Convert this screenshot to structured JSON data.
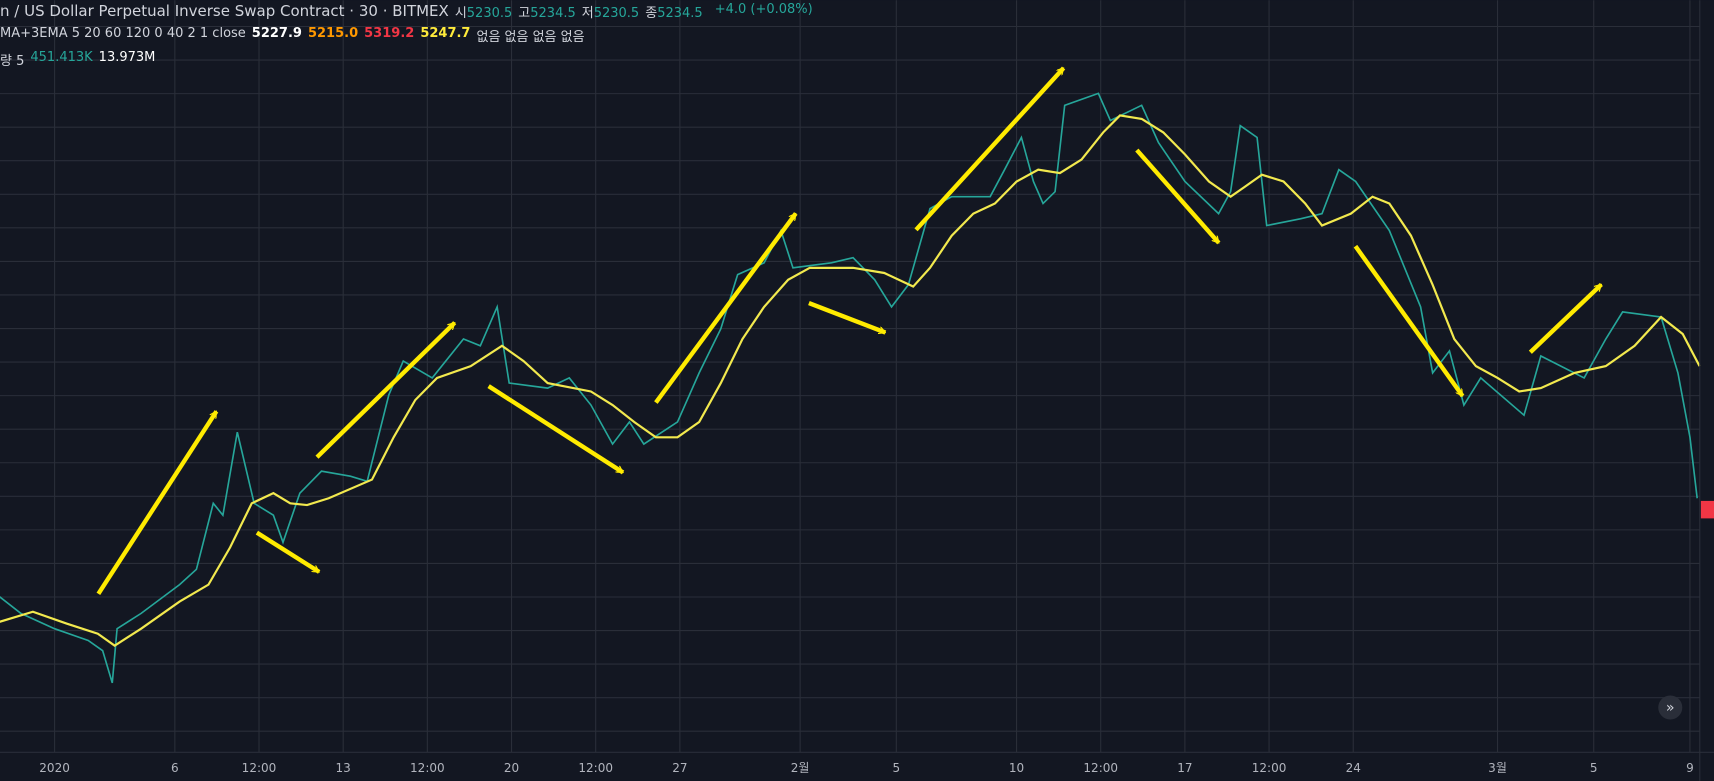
{
  "header": {
    "title": "n / US Dollar Perpetual Inverse Swap Contract · 30 · BITMEX",
    "quote": [
      {
        "label": "시",
        "value": "5230.5"
      },
      {
        "label": "고",
        "value": "5234.5"
      },
      {
        "label": "저",
        "value": "5230.5"
      },
      {
        "label": "종",
        "value": "5234.5"
      }
    ],
    "change": "+4.0 (+0.08%)"
  },
  "indicators": {
    "ma": {
      "name": "MA+3EMA 5 20 60 120 0 40 2 1 close",
      "values": [
        "5227.9",
        "5215.0",
        "5319.2",
        "5247.7"
      ],
      "colors": [
        "#ffffff",
        "#ff9800",
        "#f23645",
        "#ffeb3b"
      ],
      "tail": "없음 없음 없음 없음"
    },
    "volume": {
      "name": "량 5",
      "values": [
        "451.413K",
        "13.973M"
      ],
      "colors": [
        "#26a69a",
        "#ffffff"
      ]
    }
  },
  "chart_data": {
    "type": "line",
    "grid": true,
    "xlim": [
      -2.27,
      68.41
    ],
    "ylim": [
      6350,
      10790
    ],
    "xticks": [
      {
        "value": 0,
        "label": "2020"
      },
      {
        "value": 5,
        "label": "6"
      },
      {
        "value": 8.5,
        "label": "12:00"
      },
      {
        "value": 12,
        "label": "13"
      },
      {
        "value": 15.5,
        "label": "12:00"
      },
      {
        "value": 19,
        "label": "20"
      },
      {
        "value": 22.5,
        "label": "12:00"
      },
      {
        "value": 26,
        "label": "27"
      },
      {
        "value": 31,
        "label": "2월"
      },
      {
        "value": 35,
        "label": "5"
      },
      {
        "value": 40,
        "label": "10"
      },
      {
        "value": 43.5,
        "label": "12:00"
      },
      {
        "value": 47,
        "label": "17"
      },
      {
        "value": 50.5,
        "label": "12:00"
      },
      {
        "value": 54,
        "label": "24"
      },
      {
        "value": 60,
        "label": "3월"
      },
      {
        "value": 64,
        "label": "5"
      },
      {
        "value": 68,
        "label": "9"
      }
    ],
    "series": [
      {
        "color": "#26a69a",
        "x": [
          -2.3,
          -1.4,
          0,
          1.4,
          2.0,
          2.4,
          2.6,
          3.6,
          5.2,
          5.9,
          6.6,
          7.0,
          7.6,
          8.3,
          9.1,
          9.5,
          10.2,
          11.1,
          12.3,
          13.0,
          13.9,
          14.5,
          15.7,
          17.0,
          17.7,
          18.4,
          18.9,
          20.5,
          21.4,
          22.3,
          23.2,
          23.9,
          24.5,
          25.9,
          26.8,
          27.7,
          28.4,
          29.5,
          30.2,
          30.7,
          32.3,
          33.2,
          34.1,
          34.8,
          35.5,
          36.4,
          37.3,
          38.9,
          39.5,
          40.2,
          40.7,
          41.1,
          41.6,
          42.0,
          43.4,
          43.9,
          45.2,
          45.9,
          47.0,
          48.4,
          48.9,
          49.3,
          50.0,
          50.4,
          51.8,
          52.7,
          53.4,
          54.1,
          55.5,
          56.8,
          57.3,
          58.0,
          58.6,
          59.3,
          61.1,
          61.8,
          63.6,
          64.5,
          65.2,
          66.8,
          67.5,
          68.0,
          68.3
        ],
        "values": [
          7270,
          7170,
          7080,
          7010,
          6950,
          6760,
          7080,
          7170,
          7340,
          7430,
          7820,
          7750,
          8240,
          7820,
          7750,
          7590,
          7880,
          8010,
          7980,
          7950,
          8460,
          8660,
          8560,
          8790,
          8750,
          8980,
          8530,
          8500,
          8560,
          8400,
          8170,
          8300,
          8170,
          8300,
          8590,
          8850,
          9170,
          9240,
          9430,
          9210,
          9240,
          9270,
          9140,
          8980,
          9110,
          9560,
          9630,
          9630,
          9790,
          9980,
          9720,
          9590,
          9660,
          10170,
          10240,
          10080,
          10170,
          9950,
          9720,
          9530,
          9660,
          10050,
          9980,
          9460,
          9500,
          9530,
          9790,
          9720,
          9430,
          8980,
          8590,
          8720,
          8400,
          8560,
          8340,
          8690,
          8560,
          8790,
          8950,
          8920,
          8590,
          8210,
          7850
        ]
      },
      {
        "color": "#f2e94e",
        "x": [
          -2.3,
          -0.9,
          0.5,
          1.8,
          2.5,
          3.6,
          5.2,
          6.4,
          7.3,
          8.2,
          9.1,
          9.8,
          10.5,
          11.4,
          13.2,
          14.1,
          15.0,
          15.9,
          17.3,
          18.6,
          19.5,
          20.5,
          22.3,
          23.2,
          24.1,
          25.0,
          25.9,
          26.8,
          27.7,
          28.6,
          29.5,
          30.5,
          31.4,
          33.2,
          34.5,
          35.7,
          36.4,
          37.3,
          38.2,
          39.1,
          40.0,
          40.9,
          41.8,
          42.7,
          43.6,
          44.3,
          45.2,
          46.1,
          47.0,
          48.0,
          48.9,
          49.5,
          50.2,
          51.1,
          52.0,
          52.7,
          53.9,
          54.8,
          55.5,
          56.4,
          57.3,
          58.2,
          59.1,
          60.0,
          60.9,
          61.8,
          63.2,
          64.5,
          65.7,
          66.8,
          67.7,
          68.4
        ],
        "values": [
          7120,
          7180,
          7110,
          7050,
          6980,
          7080,
          7240,
          7340,
          7560,
          7820,
          7880,
          7820,
          7810,
          7850,
          7960,
          8210,
          8430,
          8560,
          8630,
          8750,
          8660,
          8530,
          8480,
          8400,
          8300,
          8210,
          8210,
          8300,
          8530,
          8790,
          8980,
          9140,
          9210,
          9210,
          9180,
          9100,
          9210,
          9400,
          9530,
          9590,
          9720,
          9790,
          9770,
          9850,
          10010,
          10110,
          10090,
          10010,
          9880,
          9720,
          9630,
          9690,
          9760,
          9720,
          9590,
          9460,
          9530,
          9630,
          9590,
          9400,
          9110,
          8790,
          8630,
          8560,
          8480,
          8500,
          8590,
          8630,
          8750,
          8920,
          8820,
          8630
        ]
      }
    ]
  }
}
